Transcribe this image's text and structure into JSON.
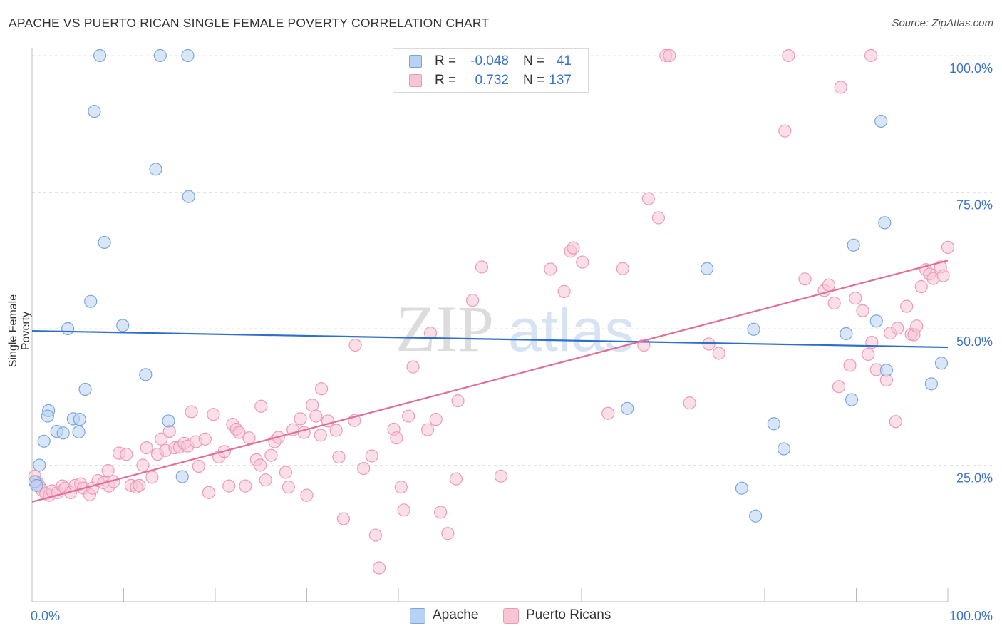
{
  "header": {
    "title": "APACHE VS PUERTO RICAN SINGLE FEMALE POVERTY CORRELATION CHART",
    "source": "Source: ZipAtlas.com"
  },
  "watermark": {
    "part1": "ZIP",
    "part2": "atlas"
  },
  "legend": {
    "rows": [
      {
        "r_label": "R =",
        "r_value": "-0.048",
        "n_label": "N =",
        "n_value": "41"
      },
      {
        "r_label": "R =",
        "r_value": "0.732",
        "n_label": "N =",
        "n_value": "137"
      }
    ]
  },
  "bottom_legend": {
    "items": [
      "Apache",
      "Puerto Ricans"
    ]
  },
  "colors": {
    "apache_fill": "#b8d1f3",
    "apache_stroke": "#7aa6e0",
    "apache_line": "#2e6fc9",
    "pr_fill": "#f8c5d5",
    "pr_stroke": "#ee9ab5",
    "pr_line": "#e26d98",
    "tick_label": "#3d74c9"
  },
  "chart_data": {
    "type": "scatter",
    "title": "APACHE VS PUERTO RICAN SINGLE FEMALE POVERTY CORRELATION CHART",
    "xlabel": "",
    "ylabel": "Single Female Poverty",
    "xlim": [
      0,
      100
    ],
    "ylim": [
      0,
      100
    ],
    "x_tick_labels": [
      "0.0%",
      "100.0%"
    ],
    "y_ticks": [
      25,
      50,
      75,
      100
    ],
    "y_tick_labels": [
      "25.0%",
      "50.0%",
      "75.0%",
      "100.0%"
    ],
    "grid": "horizontal dashed",
    "series": [
      {
        "name": "Apache",
        "r": -0.048,
        "n": 41,
        "trend": [
          [
            0,
            49.6
          ],
          [
            100,
            46.6
          ]
        ],
        "points": [
          [
            7.4,
            100
          ],
          [
            14,
            100
          ],
          [
            17,
            100
          ],
          [
            6.8,
            89.8
          ],
          [
            13.5,
            79.2
          ],
          [
            17.1,
            74.2
          ],
          [
            7.9,
            65.8
          ],
          [
            6.4,
            55
          ],
          [
            9.9,
            50.6
          ],
          [
            3.9,
            50
          ],
          [
            12.4,
            41.6
          ],
          [
            5.8,
            38.9
          ],
          [
            1.8,
            35
          ],
          [
            1.7,
            34
          ],
          [
            4.5,
            33.5
          ],
          [
            5.2,
            33.4
          ],
          [
            14.9,
            33.1
          ],
          [
            2.7,
            31.2
          ],
          [
            3.4,
            30.9
          ],
          [
            5.1,
            31.1
          ],
          [
            1.3,
            29.4
          ],
          [
            0.8,
            25
          ],
          [
            16.4,
            22.9
          ],
          [
            0.3,
            22
          ],
          [
            0.5,
            21.3
          ],
          [
            65,
            35.4
          ],
          [
            73.7,
            61
          ],
          [
            78.8,
            49.9
          ],
          [
            81,
            32.6
          ],
          [
            82.1,
            28
          ],
          [
            77.5,
            20.8
          ],
          [
            79,
            15.7
          ],
          [
            89.7,
            65.3
          ],
          [
            89.5,
            37
          ],
          [
            88.9,
            49.1
          ],
          [
            92.7,
            88
          ],
          [
            93.3,
            42.4
          ],
          [
            92.2,
            51.4
          ],
          [
            93.1,
            69.4
          ],
          [
            98.2,
            39.9
          ],
          [
            99.3,
            43.7
          ]
        ]
      },
      {
        "name": "Puerto Ricans",
        "r": 0.732,
        "n": 137,
        "trend": [
          [
            0,
            18.3
          ],
          [
            100,
            62.5
          ]
        ],
        "points": [
          [
            0.3,
            23
          ],
          [
            0.5,
            22
          ],
          [
            0.8,
            21.2
          ],
          [
            1.1,
            20.4
          ],
          [
            1.5,
            19.8
          ],
          [
            1.9,
            19.5
          ],
          [
            2.2,
            20.3
          ],
          [
            2.8,
            20
          ],
          [
            3.3,
            21.2
          ],
          [
            3.6,
            20.8
          ],
          [
            4.2,
            20
          ],
          [
            4.7,
            21.3
          ],
          [
            5.3,
            21.6
          ],
          [
            5.6,
            20.8
          ],
          [
            6.3,
            19.6
          ],
          [
            6.6,
            20.8
          ],
          [
            7.2,
            22.2
          ],
          [
            8.3,
            24
          ],
          [
            7.8,
            21.8
          ],
          [
            8.4,
            21.2
          ],
          [
            8.9,
            22
          ],
          [
            9.5,
            27.2
          ],
          [
            10.3,
            27
          ],
          [
            10.8,
            21.3
          ],
          [
            11.4,
            21
          ],
          [
            11.7,
            21.3
          ],
          [
            12.5,
            28.2
          ],
          [
            12.1,
            25
          ],
          [
            13.1,
            22.8
          ],
          [
            13.7,
            27
          ],
          [
            14.1,
            29.8
          ],
          [
            14.6,
            27.7
          ],
          [
            15,
            31.2
          ],
          [
            15.6,
            28.2
          ],
          [
            16.1,
            28.3
          ],
          [
            16.6,
            29
          ],
          [
            17,
            28.5
          ],
          [
            17.4,
            34.8
          ],
          [
            17.9,
            29.3
          ],
          [
            18.2,
            24.8
          ],
          [
            18.9,
            29.8
          ],
          [
            19.3,
            20
          ],
          [
            19.8,
            34.3
          ],
          [
            20.4,
            26.5
          ],
          [
            21,
            27.5
          ],
          [
            21.5,
            21.2
          ],
          [
            21.9,
            32.5
          ],
          [
            22.3,
            31.6
          ],
          [
            22.6,
            31
          ],
          [
            23.3,
            21.2
          ],
          [
            23.7,
            30
          ],
          [
            24.5,
            26
          ],
          [
            24.9,
            25
          ],
          [
            25,
            35.8
          ],
          [
            25.5,
            22.3
          ],
          [
            26.1,
            26.8
          ],
          [
            26.5,
            29.3
          ],
          [
            26.9,
            30.1
          ],
          [
            27.7,
            23.7
          ],
          [
            28,
            21
          ],
          [
            28.5,
            31.5
          ],
          [
            29.3,
            33.5
          ],
          [
            29.7,
            31
          ],
          [
            30,
            19.5
          ],
          [
            30.6,
            36
          ],
          [
            31,
            34
          ],
          [
            31.6,
            39
          ],
          [
            31.5,
            30.5
          ],
          [
            32.3,
            33.1
          ],
          [
            33.2,
            31.4
          ],
          [
            33.5,
            26.5
          ],
          [
            34,
            15.2
          ],
          [
            35.2,
            33.2
          ],
          [
            35.3,
            47
          ],
          [
            36.2,
            24.4
          ],
          [
            37.1,
            26.7
          ],
          [
            37.5,
            12.2
          ],
          [
            37.9,
            6.2
          ],
          [
            39.5,
            31.6
          ],
          [
            39.8,
            30
          ],
          [
            40.3,
            21
          ],
          [
            40.6,
            16.8
          ],
          [
            41.1,
            34
          ],
          [
            41.6,
            43
          ],
          [
            43.2,
            31.5
          ],
          [
            43.5,
            49.2
          ],
          [
            44.1,
            33.4
          ],
          [
            44.6,
            16.4
          ],
          [
            45.4,
            12.5
          ],
          [
            46.3,
            22.5
          ],
          [
            46.5,
            36.8
          ],
          [
            48.1,
            55.2
          ],
          [
            49.1,
            61.3
          ],
          [
            51.2,
            23
          ],
          [
            56.6,
            60.9
          ],
          [
            58.1,
            56.8
          ],
          [
            58.8,
            64.2
          ],
          [
            59.1,
            64.8
          ],
          [
            60.1,
            62.2
          ],
          [
            62.9,
            34.5
          ],
          [
            64.5,
            61
          ],
          [
            66.8,
            47
          ],
          [
            67.3,
            73.8
          ],
          [
            68.4,
            70.3
          ],
          [
            75,
            45.5
          ],
          [
            73.9,
            47.2
          ],
          [
            71.8,
            36.4
          ],
          [
            69.2,
            100
          ],
          [
            69.6,
            100
          ],
          [
            82.2,
            86.2
          ],
          [
            82.6,
            100
          ],
          [
            88.3,
            94.2
          ],
          [
            91.6,
            100
          ],
          [
            84.4,
            59.1
          ],
          [
            86.5,
            57
          ],
          [
            87.6,
            54.7
          ],
          [
            87,
            58
          ],
          [
            88.1,
            39.4
          ],
          [
            89.3,
            43.3
          ],
          [
            89.9,
            55.6
          ],
          [
            90.7,
            53.3
          ],
          [
            91.3,
            45.3
          ],
          [
            91.7,
            47.5
          ],
          [
            92.2,
            42.5
          ],
          [
            93.3,
            40.6
          ],
          [
            94.3,
            33
          ],
          [
            93.7,
            49.2
          ],
          [
            94.5,
            50.1
          ],
          [
            95.5,
            54.1
          ],
          [
            96,
            49
          ],
          [
            96.3,
            48.9
          ],
          [
            96.6,
            50.5
          ],
          [
            97.1,
            57.7
          ],
          [
            97.6,
            60.8
          ],
          [
            98,
            60
          ],
          [
            98.4,
            59.2
          ],
          [
            99.2,
            61.3
          ],
          [
            99.5,
            59.7
          ],
          [
            100,
            64.9
          ]
        ]
      }
    ]
  }
}
